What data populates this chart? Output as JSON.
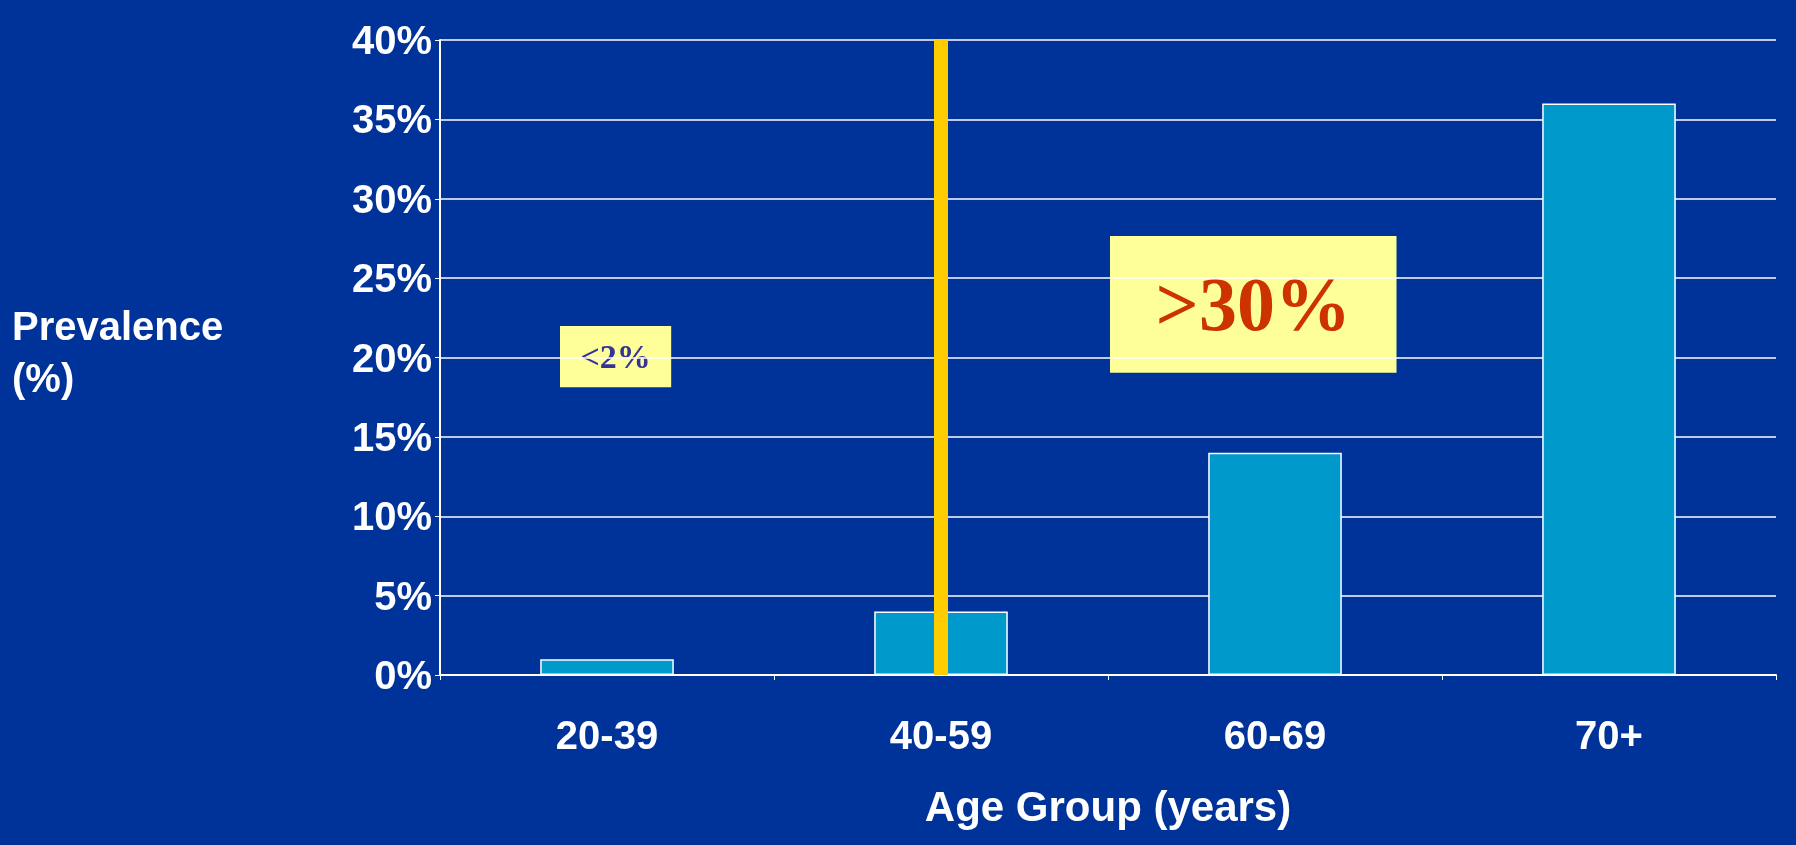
{
  "chart_data": {
    "type": "bar",
    "categories": [
      "20-39",
      "40-59",
      "60-69",
      "70+"
    ],
    "values": [
      1,
      4,
      14,
      36
    ],
    "color": "#0099cc",
    "xlabel": "Age Group (years)",
    "ylabel": "Prevalence\n(%)",
    "ylim": [
      0,
      40
    ],
    "yticks": [
      {
        "value": 0,
        "label": "0%"
      },
      {
        "value": 5,
        "label": "5%"
      },
      {
        "value": 10,
        "label": "10%"
      },
      {
        "value": 15,
        "label": "15%"
      },
      {
        "value": 20,
        "label": "20%"
      },
      {
        "value": 25,
        "label": "25%"
      },
      {
        "value": 30,
        "label": "30%"
      },
      {
        "value": 35,
        "label": "35%"
      },
      {
        "value": 40,
        "label": "40%"
      }
    ],
    "grid": "y",
    "ref_lines": [
      {
        "axis": "x",
        "value": "40-59",
        "color": "#ffcc00"
      }
    ],
    "annotations": [
      "<2%",
      ">30%"
    ]
  }
}
